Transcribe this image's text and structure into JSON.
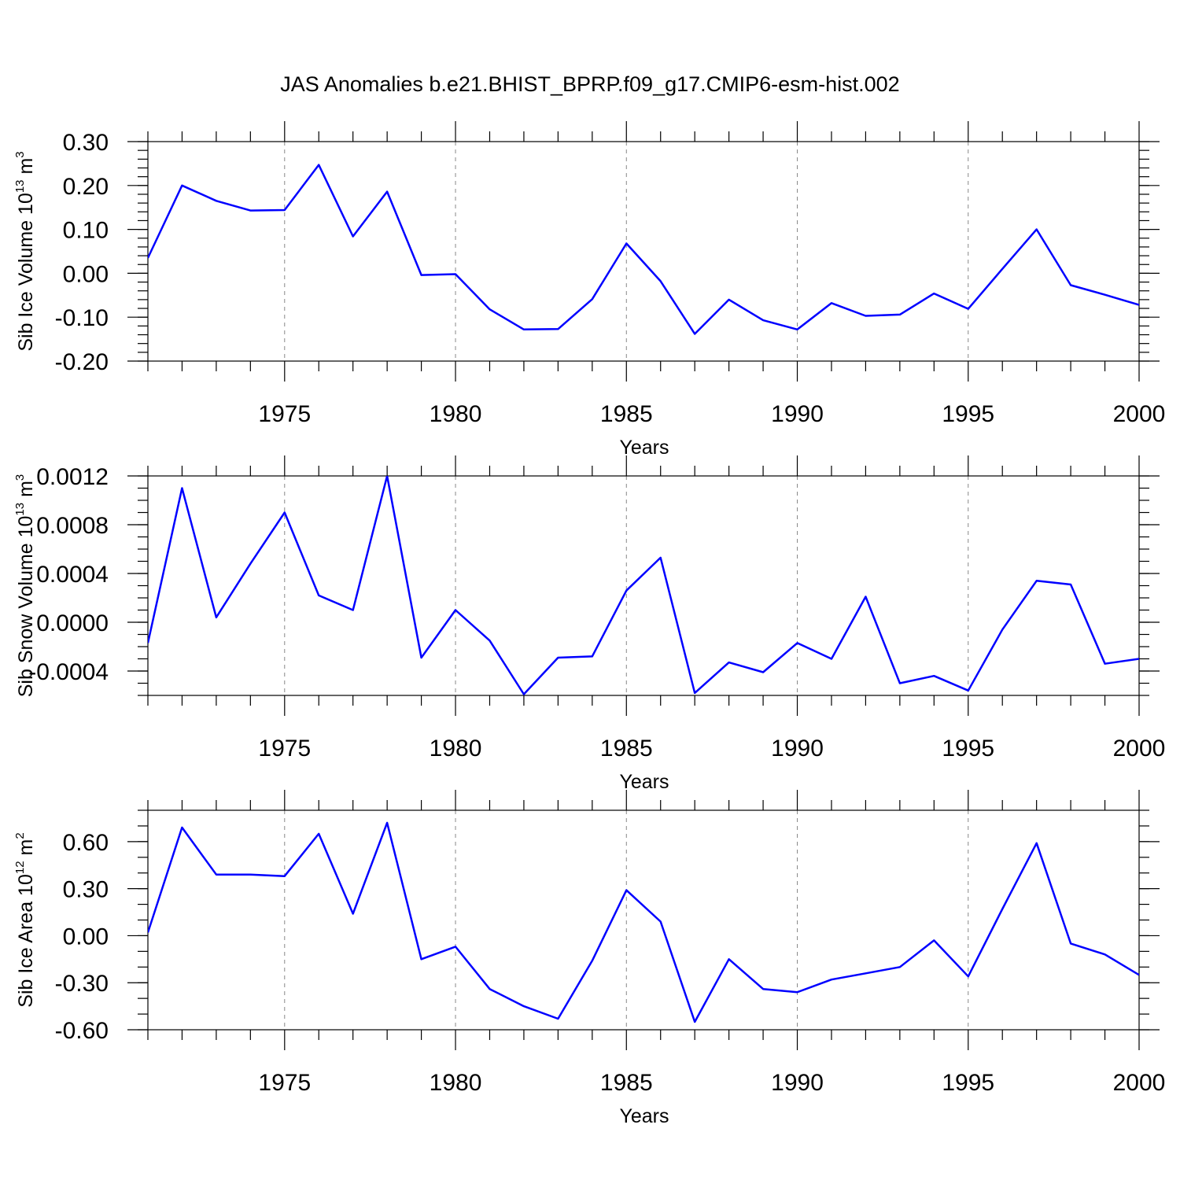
{
  "title": "JAS Anomalies b.e21.BHIST_BPRP.f09_g17.CMIP6-esm-hist.002",
  "colors": {
    "line": "#0000ff",
    "grid": "#888888",
    "axis": "#000000"
  },
  "chart_data": [
    {
      "type": "line",
      "ylabel": {
        "text": "Sib Ice Volume 10",
        "sup": "13",
        "unit": " m",
        "unit_sup": "3"
      },
      "xlabel": "Years",
      "ylim": [
        -0.2,
        0.3
      ],
      "yticks": [
        -0.2,
        -0.1,
        0.0,
        0.1,
        0.2,
        0.3
      ],
      "ytick_labels": [
        "-0.20",
        "-0.10",
        "0.00",
        "0.10",
        "0.20",
        "0.30"
      ],
      "yminor_step": 0.02,
      "xlim": [
        1971,
        2000
      ],
      "xticks": [
        1975,
        1980,
        1985,
        1990,
        1995,
        2000
      ],
      "xtick_labels": [
        "1975",
        "1980",
        "1985",
        "1990",
        "1995",
        "2000"
      ],
      "grid": "vertical dashed at major x ticks",
      "x": [
        1971,
        1972,
        1973,
        1974,
        1975,
        1976,
        1977,
        1978,
        1979,
        1980,
        1981,
        1982,
        1983,
        1984,
        1985,
        1986,
        1987,
        1988,
        1989,
        1990,
        1991,
        1992,
        1993,
        1994,
        1995,
        1996,
        1997,
        1998,
        1999,
        2000
      ],
      "series": [
        {
          "values": [
            0.035,
            0.2,
            0.165,
            0.143,
            0.144,
            0.247,
            0.084,
            0.186,
            -0.004,
            -0.002,
            -0.082,
            -0.128,
            -0.127,
            -0.059,
            0.068,
            -0.018,
            -0.138,
            -0.06,
            -0.107,
            -0.128,
            -0.068,
            -0.097,
            -0.094,
            -0.046,
            -0.081,
            0.01,
            0.1,
            -0.027,
            -0.049,
            -0.072
          ]
        }
      ]
    },
    {
      "type": "line",
      "ylabel": {
        "text": "Sib Snow Volume 10",
        "sup": "13",
        "unit": " m",
        "unit_sup": "3"
      },
      "xlabel": "Years",
      "ylim": [
        -0.0006,
        0.0012
      ],
      "yticks": [
        -0.0004,
        0.0,
        0.0004,
        0.0008,
        0.0012
      ],
      "ytick_labels": [
        "-0.0004",
        "0.0000",
        "0.0004",
        "0.0008",
        "0.0012"
      ],
      "yminor_step": 0.0001,
      "xlim": [
        1971,
        2000
      ],
      "xticks": [
        1975,
        1980,
        1985,
        1990,
        1995,
        2000
      ],
      "xtick_labels": [
        "1975",
        "1980",
        "1985",
        "1990",
        "1995",
        "2000"
      ],
      "grid": "vertical dashed at major x ticks",
      "x": [
        1971,
        1972,
        1973,
        1974,
        1975,
        1976,
        1977,
        1978,
        1979,
        1980,
        1981,
        1982,
        1983,
        1984,
        1985,
        1986,
        1987,
        1988,
        1989,
        1990,
        1991,
        1992,
        1993,
        1994,
        1995,
        1996,
        1997,
        1998,
        1999,
        2000
      ],
      "series": [
        {
          "values": [
            -0.00017,
            0.0011,
            4e-05,
            0.00048,
            0.0009,
            0.00022,
            0.0001,
            0.0012,
            -0.00029,
            0.0001,
            -0.00015,
            -0.00059,
            -0.00029,
            -0.00028,
            0.00026,
            0.00053,
            -0.00058,
            -0.00033,
            -0.00041,
            -0.00017,
            -0.0003,
            0.00021,
            -0.0005,
            -0.00044,
            -0.00056,
            -6e-05,
            0.00034,
            0.00031,
            -0.00034,
            -0.0003
          ]
        }
      ]
    },
    {
      "type": "line",
      "ylabel": {
        "text": "Sib Ice Area 10",
        "sup": "12",
        "unit": " m",
        "unit_sup": "2"
      },
      "xlabel": "Years",
      "ylim": [
        -0.6,
        0.8
      ],
      "yticks": [
        -0.6,
        -0.3,
        0.0,
        0.3,
        0.6
      ],
      "ytick_labels": [
        "-0.60",
        "-0.30",
        "0.00",
        "0.30",
        "0.60"
      ],
      "yminor_step": 0.1,
      "xlim": [
        1971,
        2000
      ],
      "xticks": [
        1975,
        1980,
        1985,
        1990,
        1995,
        2000
      ],
      "xtick_labels": [
        "1975",
        "1980",
        "1985",
        "1990",
        "1995",
        "2000"
      ],
      "grid": "vertical dashed at major x ticks",
      "x": [
        1971,
        1972,
        1973,
        1974,
        1975,
        1976,
        1977,
        1978,
        1979,
        1980,
        1981,
        1982,
        1983,
        1984,
        1985,
        1986,
        1987,
        1988,
        1989,
        1990,
        1991,
        1992,
        1993,
        1994,
        1995,
        1996,
        1997,
        1998,
        1999,
        2000
      ],
      "series": [
        {
          "values": [
            0.02,
            0.69,
            0.39,
            0.39,
            0.38,
            0.65,
            0.14,
            0.72,
            -0.15,
            -0.07,
            -0.34,
            -0.45,
            -0.53,
            -0.16,
            0.29,
            0.09,
            -0.55,
            -0.15,
            -0.34,
            -0.36,
            -0.28,
            -0.24,
            -0.2,
            -0.03,
            -0.26,
            0.17,
            0.59,
            -0.05,
            -0.12,
            -0.25
          ]
        }
      ]
    }
  ]
}
